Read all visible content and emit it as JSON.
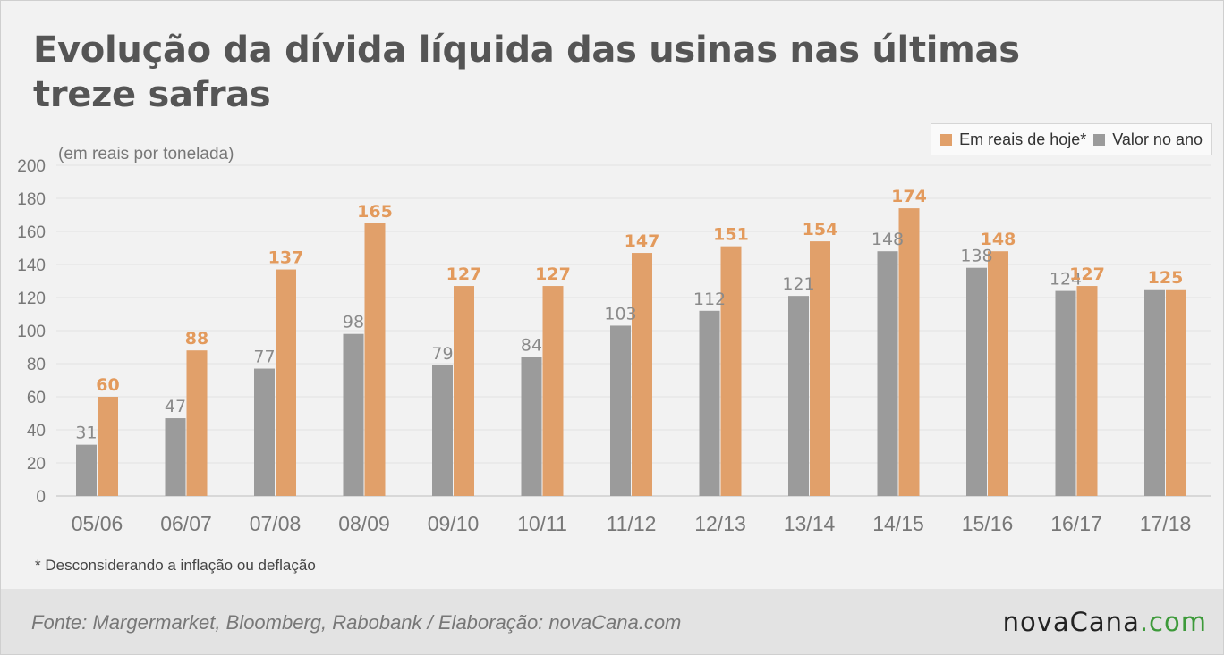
{
  "title": "Evolução da dívida líquida das usinas nas últimas treze safras",
  "footnote": "* Desconsiderando a inflação ou deflação",
  "source": "Fonte: Margermarket, Bloomberg, Rabobank / Elaboração: novaCana.com",
  "logo": {
    "brand": "novaCana",
    "suffix": ".com"
  },
  "colors": {
    "gray": "#9b9b9b",
    "orange": "#e1a06a",
    "gray_label": "#8a8a8a",
    "orange_label": "#e39a5c"
  },
  "chart_data": {
    "type": "bar",
    "ylabel": "(em reais por tonelada)",
    "ylim": [
      0,
      200
    ],
    "yticks": [
      0,
      20,
      40,
      60,
      80,
      100,
      120,
      140,
      160,
      180,
      200
    ],
    "grid": true,
    "legend_position": "top-right",
    "categories": [
      "05/06",
      "06/07",
      "07/08",
      "08/09",
      "09/10",
      "10/11",
      "11/12",
      "12/13",
      "13/14",
      "14/15",
      "15/16",
      "16/17",
      "17/18"
    ],
    "series": [
      {
        "name": "Valor no ano",
        "color": "#9b9b9b",
        "values": [
          31,
          47,
          77,
          98,
          79,
          84,
          103,
          112,
          121,
          148,
          138,
          124,
          125
        ]
      },
      {
        "name": "Em reais de hoje*",
        "color": "#e1a06a",
        "values": [
          60,
          88,
          137,
          165,
          127,
          127,
          147,
          151,
          154,
          174,
          148,
          127,
          125
        ]
      }
    ],
    "label_note": "Last category shows a single shared label \"125\""
  }
}
